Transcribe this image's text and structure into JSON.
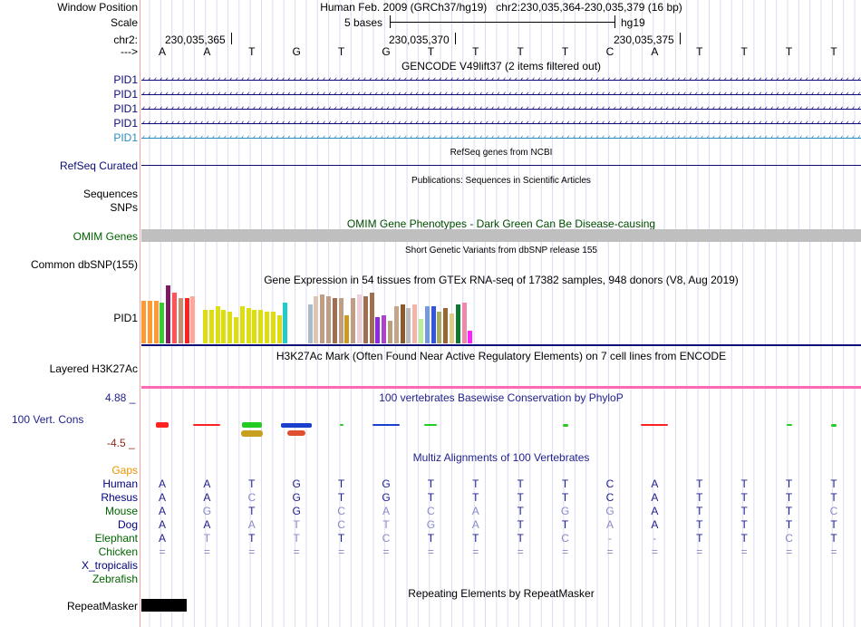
{
  "header": {
    "window_position_label": "Window Position",
    "window_position_value": "Human Feb. 2009 (GRCh37/hg19)   chr2:230,035,364-230,035,379 (16 bp)",
    "scale_label": "Scale",
    "scale_text": "5 bases",
    "scale_db": "hg19",
    "chrom_label": "chr2:",
    "coords": [
      "230,035,365",
      "230,035,370",
      "230,035,375"
    ],
    "strand_label": "--->"
  },
  "sequence": [
    "A",
    "A",
    "T",
    "G",
    "T",
    "G",
    "T",
    "T",
    "T",
    "T",
    "C",
    "A",
    "T",
    "T",
    "T",
    "T"
  ],
  "gencode": {
    "title": "GENCODE V49lift37 (2 items filtered out)",
    "items": [
      {
        "label": "PID1",
        "color": "#0c0c78"
      },
      {
        "label": "PID1",
        "color": "#0c0c78"
      },
      {
        "label": "PID1",
        "color": "#0c0c78"
      },
      {
        "label": "PID1",
        "color": "#0c0c78"
      },
      {
        "label": "PID1",
        "color": "#2d8bbf"
      }
    ]
  },
  "refseq": {
    "title": "RefSeq genes from NCBI",
    "label": "RefSeq Curated"
  },
  "publications": {
    "title": "Publications: Sequences in Scientific Articles",
    "label": "Sequences"
  },
  "snps": {
    "label": "SNPs"
  },
  "omim": {
    "title": "OMIM Gene Phenotypes - Dark Green Can Be Disease-causing",
    "label": "OMIM Genes"
  },
  "dbsnp": {
    "title": "Short Genetic Variants from dbSNP release 155",
    "label": "Common dbSNP(155)"
  },
  "gtex": {
    "title": "Gene Expression in 54 tissues from GTEx RNA-seq of 17382 samples, 948 donors (V8, Aug 2019)",
    "label": "PID1",
    "values": [
      46,
      46,
      46,
      44,
      62,
      54,
      48,
      48,
      50,
      0,
      36,
      36,
      40,
      36,
      34,
      28,
      40,
      38,
      36,
      36,
      34,
      34,
      30,
      44,
      0,
      0,
      0,
      42,
      50,
      52,
      50,
      48,
      48,
      30,
      48,
      52,
      50,
      54,
      28,
      30,
      24,
      40,
      42,
      38,
      42,
      26,
      40,
      40,
      34,
      38,
      32,
      42,
      44,
      14
    ],
    "colors": [
      "#ff9933",
      "#ff9933",
      "#ff9933",
      "#33cc33",
      "#7d1b5f",
      "#ff5555",
      "#c09070",
      "#ff2222",
      "#ffa899",
      "#ffffff",
      "#ddde10",
      "#ddde10",
      "#ddde10",
      "#ddde10",
      "#ddde10",
      "#ddde10",
      "#ddde10",
      "#ddde10",
      "#ddde10",
      "#ddde10",
      "#ddde10",
      "#ddde10",
      "#ddde10",
      "#22cccc",
      "#ffffff",
      "#ffffff",
      "#ffffff",
      "#aabbcc",
      "#ddc5b4",
      "#c09d85",
      "#c09d85",
      "#a06e50",
      "#c09d85",
      "#cc9922",
      "#c09d85",
      "#f0d0d8",
      "#a06e50",
      "#a06e50",
      "#8a2be2",
      "#aa44cc",
      "#b7a07c",
      "#c4a58a",
      "#8b5a2b",
      "#bbbbbb",
      "#f4b5a5",
      "#bbee99",
      "#7799dd",
      "#3355dd",
      "#aaaa66",
      "#996633",
      "#ddcc88",
      "#117733",
      "#ee88aa",
      "#ff22ff"
    ]
  },
  "h3k27ac": {
    "title": "H3K27Ac Mark (Often Found Near Active Regulatory Elements) on 7 cell lines from ENCODE",
    "label": "Layered H3K27Ac"
  },
  "phylop": {
    "title": "100 vertebrates Basewise Conservation by PhyloP",
    "label": "100 Vert. Cons",
    "max": "4.88 _",
    "min": "-4.5 _"
  },
  "multiz": {
    "title": "Multiz Alignments of 100 Vertebrates",
    "gaps_label": "Gaps",
    "species": [
      {
        "name": "Human",
        "color": "#000080",
        "bases": [
          "A",
          "A",
          "T",
          "G",
          "T",
          "G",
          "T",
          "T",
          "T",
          "T",
          "C",
          "A",
          "T",
          "T",
          "T",
          "T"
        ],
        "dim": [
          0,
          0,
          0,
          0,
          0,
          0,
          0,
          0,
          0,
          0,
          0,
          0,
          0,
          0,
          0,
          0
        ]
      },
      {
        "name": "Rhesus",
        "color": "#000080",
        "bases": [
          "A",
          "A",
          "C",
          "G",
          "T",
          "G",
          "T",
          "T",
          "T",
          "T",
          "C",
          "A",
          "T",
          "T",
          "T",
          "T"
        ],
        "dim": [
          0,
          0,
          1,
          0,
          0,
          0,
          0,
          0,
          0,
          0,
          0,
          0,
          0,
          0,
          0,
          0
        ]
      },
      {
        "name": "Mouse",
        "color": "#006400",
        "bases": [
          "A",
          "G",
          "T",
          "G",
          "C",
          "A",
          "C",
          "A",
          "T",
          "G",
          "G",
          "A",
          "T",
          "T",
          "T",
          "C"
        ],
        "dim": [
          0,
          1,
          0,
          0,
          1,
          1,
          1,
          1,
          0,
          1,
          1,
          0,
          0,
          0,
          0,
          1
        ]
      },
      {
        "name": "Dog",
        "color": "#000080",
        "bases": [
          "A",
          "A",
          "A",
          "T",
          "C",
          "T",
          "G",
          "A",
          "T",
          "T",
          "A",
          "A",
          "T",
          "T",
          "T",
          "T"
        ],
        "dim": [
          0,
          0,
          1,
          1,
          1,
          1,
          1,
          1,
          0,
          0,
          1,
          0,
          0,
          0,
          0,
          0
        ]
      },
      {
        "name": "Elephant",
        "color": "#006400",
        "bases": [
          "A",
          "T",
          "T",
          "T",
          "T",
          "C",
          "T",
          "T",
          "T",
          "C",
          "-",
          "-",
          "T",
          "T",
          "C",
          "T"
        ],
        "dim": [
          0,
          1,
          0,
          1,
          0,
          1,
          0,
          0,
          0,
          1,
          1,
          1,
          0,
          0,
          1,
          0
        ]
      },
      {
        "name": "Chicken",
        "color": "#006400",
        "bases": [
          "=",
          "=",
          "=",
          "=",
          "=",
          "=",
          "=",
          "=",
          "=",
          "=",
          "=",
          "=",
          "=",
          "=",
          "=",
          "="
        ],
        "dim": [
          1,
          1,
          1,
          1,
          1,
          1,
          1,
          1,
          1,
          1,
          1,
          1,
          1,
          1,
          1,
          1
        ]
      },
      {
        "name": "X_tropicalis",
        "color": "#000080",
        "bases": [],
        "dim": []
      },
      {
        "name": "Zebrafish",
        "color": "#006400",
        "bases": [],
        "dim": []
      }
    ]
  },
  "repeatmasker": {
    "title": "Repeating Elements by RepeatMasker",
    "label": "RepeatMasker"
  },
  "colors": {
    "navy": "#0c0c78",
    "green": "#006400",
    "orange": "#e69500",
    "omim": "#004d00",
    "h3k27ac": "#ff69b4",
    "phylop_pos": "#1e1e8c",
    "phylop_neg": "#8b2a1a"
  }
}
